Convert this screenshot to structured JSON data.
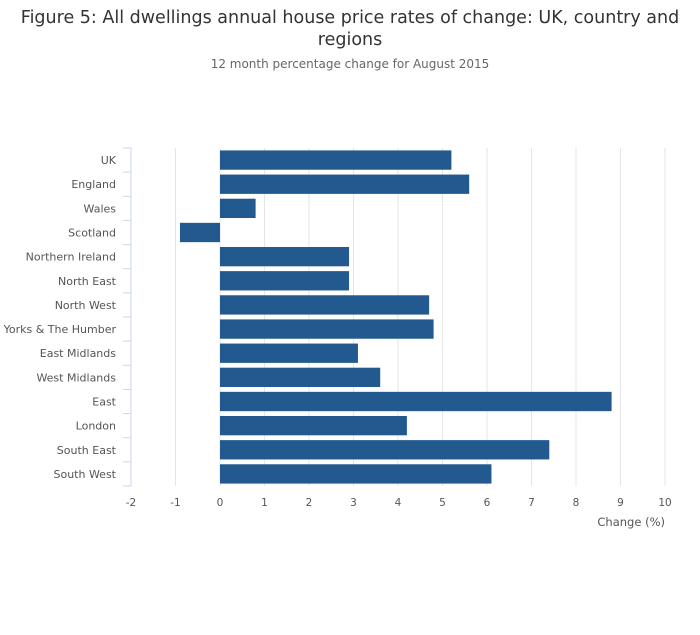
{
  "chart_data": {
    "type": "bar",
    "orientation": "horizontal",
    "title": "Figure 5: All dwellings annual house price rates of change: UK, country and regions",
    "subtitle": "12 month percentage change for August 2015",
    "xlabel": "Change (%)",
    "ylabel": "",
    "categories": [
      "UK",
      "England",
      "Wales",
      "Scotland",
      "Northern Ireland",
      "North East",
      "North West",
      "Yorks & The Humber",
      "East Midlands",
      "West Midlands",
      "East",
      "London",
      "South East",
      "South West"
    ],
    "values": [
      5.2,
      5.6,
      0.8,
      -0.9,
      2.9,
      2.9,
      4.7,
      4.8,
      3.1,
      3.6,
      8.8,
      4.2,
      7.4,
      6.1
    ],
    "xlim": [
      -2,
      10
    ],
    "xticks": [
      -2,
      -1,
      0,
      1,
      2,
      3,
      4,
      5,
      6,
      7,
      8,
      9,
      10
    ],
    "grid": true,
    "bar_color": "#22598f",
    "grid_color": "#e6e6e6"
  }
}
